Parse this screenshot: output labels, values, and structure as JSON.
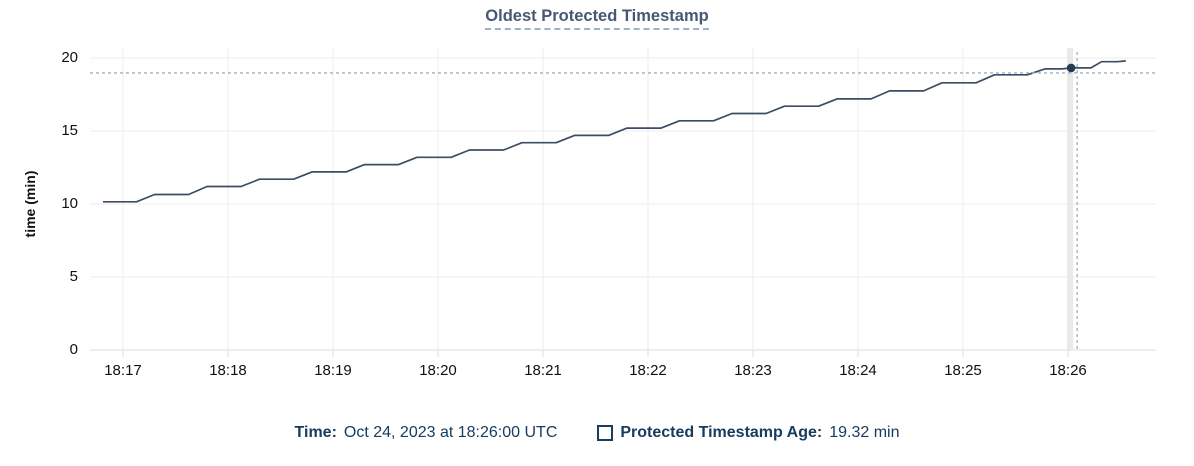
{
  "title": "Oldest Protected Timestamp",
  "y_axis": {
    "label": "time (min)"
  },
  "legend": {
    "time_prefix": "Time:",
    "time_value": "Oct 24, 2023 at 18:26:00 UTC",
    "series_label": "Protected Timestamp Age:",
    "series_value": "19.32 min",
    "checkbox_checked": false
  },
  "colors": {
    "title": "#475872",
    "title_underline": "#9fb0c9",
    "axis_text": "#111111",
    "legend_text": "#163c60",
    "line": "#3c4d64",
    "dot": "#263a52",
    "crosshair": "#9db0c2",
    "grid": "#ececec",
    "grid_zero": "#dcdcdc",
    "hover_band": "#e9e9e9",
    "background": "#ffffff"
  },
  "chart_data": {
    "type": "line",
    "title": "Oldest Protected Timestamp",
    "xlabel": "",
    "ylabel": "time (min)",
    "ylim": [
      0,
      20
    ],
    "y_ticks": [
      0,
      5,
      10,
      15,
      20
    ],
    "x_ticks": [
      "18:17",
      "18:18",
      "18:19",
      "18:20",
      "18:21",
      "18:22",
      "18:23",
      "18:24",
      "18:25",
      "18:26"
    ],
    "x_tick_minutes": [
      17,
      18,
      19,
      20,
      21,
      22,
      23,
      24,
      25,
      26
    ],
    "x_range_minutes_after_1800": [
      16.69,
      26.84
    ],
    "grid": true,
    "legend_position": "bottom",
    "series": [
      {
        "name": "Protected Timestamp Age",
        "unit": "min",
        "style": "step-ramp",
        "points_minutes_after_1800": [
          [
            16.81,
            10.15
          ],
          [
            17.3,
            10.65
          ],
          [
            17.8,
            11.2
          ],
          [
            18.3,
            11.7
          ],
          [
            18.8,
            12.2
          ],
          [
            19.3,
            12.7
          ],
          [
            19.8,
            13.2
          ],
          [
            20.3,
            13.7
          ],
          [
            20.8,
            14.2
          ],
          [
            21.3,
            14.7
          ],
          [
            21.8,
            15.2
          ],
          [
            22.3,
            15.7
          ],
          [
            22.8,
            16.2
          ],
          [
            23.3,
            16.7
          ],
          [
            23.8,
            17.2
          ],
          [
            24.3,
            17.75
          ],
          [
            24.8,
            18.3
          ],
          [
            25.3,
            18.85
          ],
          [
            25.78,
            19.25
          ],
          [
            26.03,
            19.32
          ],
          [
            26.32,
            19.75
          ],
          [
            26.55,
            19.8
          ]
        ]
      }
    ],
    "hover_point": {
      "x_minute": 26.03,
      "value": 19.32,
      "series": "Protected Timestamp Age",
      "time": "18:26:00 UTC"
    }
  }
}
